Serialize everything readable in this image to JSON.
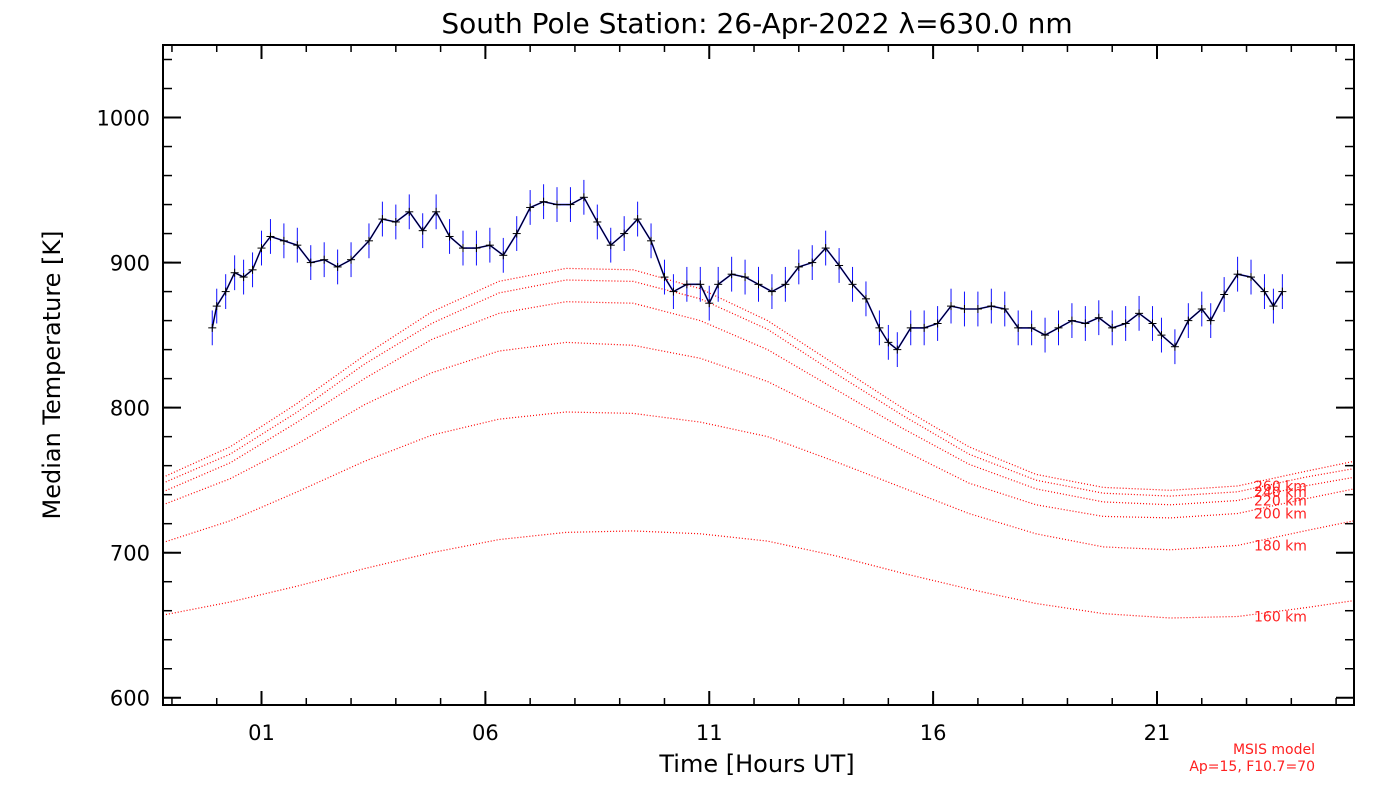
{
  "chart_data": {
    "type": "line",
    "title": "South Pole Station: 26-Apr-2022 λ=630.0 nm",
    "xlabel": "Time [Hours UT]",
    "ylabel": "Median Temperature [K]",
    "xlim": [
      -1.2,
      25.4
    ],
    "ylim": [
      595,
      1050
    ],
    "x_ticks": [
      {
        "value": 1,
        "label": "01"
      },
      {
        "value": 6,
        "label": "06"
      },
      {
        "value": 11,
        "label": "11"
      },
      {
        "value": 16,
        "label": "16"
      },
      {
        "value": 21,
        "label": "21"
      }
    ],
    "y_ticks": [
      600,
      700,
      800,
      900,
      1000
    ],
    "grid": false,
    "series": [
      {
        "color": "#000000",
        "error_color": "#1010ff",
        "error_bar": 12,
        "x": [
          -0.1,
          0.0,
          0.2,
          0.4,
          0.6,
          0.8,
          1.0,
          1.2,
          1.5,
          1.8,
          2.1,
          2.4,
          2.7,
          3.0,
          3.4,
          3.7,
          4.0,
          4.3,
          4.6,
          4.9,
          5.2,
          5.5,
          5.8,
          6.1,
          6.4,
          6.7,
          7.0,
          7.3,
          7.6,
          7.9,
          8.2,
          8.5,
          8.8,
          9.1,
          9.4,
          9.7,
          10.0,
          10.2,
          10.5,
          10.8,
          11.0,
          11.2,
          11.5,
          11.8,
          12.1,
          12.4,
          12.7,
          13.0,
          13.3,
          13.6,
          13.9,
          14.2,
          14.5,
          14.8,
          15.0,
          15.2,
          15.5,
          15.8,
          16.1,
          16.4,
          16.7,
          17.0,
          17.3,
          17.6,
          17.9,
          18.2,
          18.5,
          18.8,
          19.1,
          19.4,
          19.7,
          20.0,
          20.3,
          20.6,
          20.9,
          21.1,
          21.4,
          21.7,
          22.0,
          22.2,
          22.5,
          22.8,
          23.1,
          23.4,
          23.6,
          23.8
        ],
        "y": [
          855,
          870,
          880,
          893,
          890,
          895,
          910,
          918,
          915,
          912,
          900,
          902,
          897,
          902,
          915,
          930,
          928,
          935,
          922,
          935,
          918,
          910,
          910,
          912,
          905,
          920,
          938,
          942,
          940,
          940,
          945,
          928,
          912,
          920,
          930,
          915,
          890,
          880,
          885,
          885,
          872,
          885,
          892,
          890,
          885,
          880,
          885,
          897,
          900,
          910,
          898,
          885,
          875,
          855,
          845,
          840,
          855,
          855,
          858,
          870,
          868,
          868,
          870,
          868,
          855,
          855,
          850,
          855,
          860,
          858,
          862,
          855,
          858,
          865,
          858,
          850,
          842,
          860,
          868,
          860,
          878,
          892,
          890,
          880,
          870,
          880
        ]
      }
    ],
    "model_curves": [
      {
        "label": "160 km",
        "color": "#ff0000",
        "y": [
          657,
          666,
          677,
          689,
          700,
          709,
          714,
          715,
          713,
          708,
          698,
          686,
          675,
          665,
          658,
          655,
          656,
          662,
          667
        ]
      },
      {
        "label": "180 km",
        "color": "#ff0000",
        "y": [
          707,
          722,
          742,
          763,
          781,
          792,
          797,
          796,
          790,
          780,
          763,
          745,
          727,
          713,
          704,
          702,
          705,
          715,
          722
        ]
      },
      {
        "label": "200 km",
        "color": "#ff0000",
        "y": [
          733,
          751,
          775,
          802,
          824,
          839,
          845,
          843,
          834,
          818,
          795,
          771,
          748,
          733,
          725,
          724,
          727,
          737,
          744
        ]
      },
      {
        "label": "220 km",
        "color": "#ff0000",
        "y": [
          742,
          762,
          790,
          820,
          847,
          865,
          873,
          872,
          860,
          840,
          813,
          786,
          761,
          744,
          735,
          733,
          736,
          746,
          752
        ]
      },
      {
        "label": "240 km",
        "color": "#ff0000",
        "y": [
          748,
          768,
          797,
          830,
          858,
          879,
          888,
          887,
          875,
          854,
          824,
          795,
          768,
          750,
          741,
          739,
          742,
          752,
          758
        ]
      },
      {
        "label": "260 km",
        "color": "#ff0000",
        "y": [
          752,
          773,
          803,
          836,
          866,
          887,
          896,
          895,
          882,
          860,
          830,
          800,
          773,
          754,
          745,
          743,
          746,
          756,
          763
        ]
      }
    ],
    "model_x": [
      -1.2,
      0.3,
      1.8,
      3.3,
      4.8,
      6.3,
      7.8,
      9.3,
      10.8,
      12.3,
      13.8,
      15.3,
      16.8,
      18.3,
      19.8,
      21.3,
      22.8,
      24.3,
      25.4
    ]
  },
  "note": {
    "line1": "MSIS model",
    "line2": "Ap=15, F10.7=70"
  }
}
